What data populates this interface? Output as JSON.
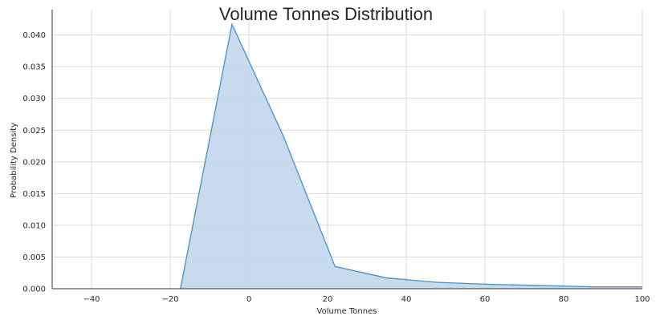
{
  "chart_data": {
    "type": "area",
    "title": "Volume Tonnes Distribution",
    "xlabel": "Volume Tonnes",
    "ylabel": "Probability Density",
    "xlim": [
      -50,
      100
    ],
    "ylim": [
      0,
      0.044
    ],
    "x_ticks": [
      -40,
      -20,
      0,
      20,
      40,
      60,
      80,
      100
    ],
    "y_ticks": [
      0.0,
      0.005,
      0.01,
      0.015,
      0.02,
      0.025,
      0.03,
      0.035,
      0.04
    ],
    "x_tick_labels": [
      "−40",
      "−20",
      "0",
      "20",
      "40",
      "60",
      "80",
      "100"
    ],
    "y_tick_labels": [
      "0.000",
      "0.005",
      "0.010",
      "0.015",
      "0.020",
      "0.025",
      "0.030",
      "0.035",
      "0.040"
    ],
    "grid": true,
    "series": [
      {
        "x": [
          -17.4,
          -4.3,
          8.8,
          21.9,
          35.0,
          48.1,
          61.2,
          74.3,
          87.4,
          100.0
        ],
        "y": [
          0.0,
          0.0417,
          0.024,
          0.0035,
          0.0017,
          0.001,
          0.0007,
          0.0005,
          0.0003,
          0.0003
        ]
      }
    ],
    "colors": {
      "line": "#4a8fc2",
      "fill": "#c4d9ec"
    }
  }
}
